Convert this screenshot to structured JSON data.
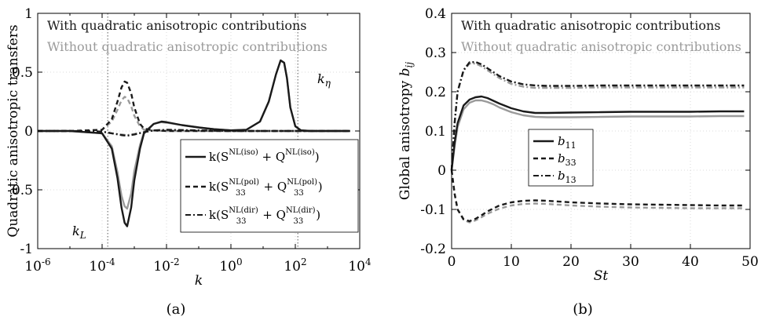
{
  "colors": {
    "black": "#1a1a1a",
    "gray": "#9a9a9a",
    "vline": "#888888",
    "grid": "#cfcfcf"
  },
  "panel_a": {
    "caption": "(a)",
    "header_with": "With quadratic anisotropic contributions",
    "header_without": "Without quadratic anisotropic contributions",
    "ylabel": "Quadratic anisotropic transfers",
    "xlabel": "k",
    "annotations": {
      "kL": "k_L",
      "keta": "k_η"
    },
    "legend": [
      "k(S^NL(iso) + Q^NL(iso))",
      "k(S33^NL(pol) + Q33^NL(pol))",
      "k(S33^NL(dir) + Q33^NL(dir))"
    ],
    "xtick_labels": [
      "10^-6",
      "10^-4",
      "10^-2",
      "10^0",
      "10^2",
      "10^4"
    ],
    "ytick_labels": [
      "1",
      "0.5",
      "0",
      "-0.5",
      "-1"
    ]
  },
  "panel_b": {
    "caption": "(b)",
    "header_with": "With quadratic anisotropic contributions",
    "header_without": "Without quadratic anisotropic contributions",
    "ylabel": "Global anisotropy b_ij",
    "xlabel": "St",
    "legend": [
      "b11",
      "b33",
      "b13"
    ],
    "xtick_labels": [
      "0",
      "10",
      "20",
      "30",
      "40",
      "50"
    ],
    "ytick_labels": [
      "0.4",
      "0.3",
      "0.2",
      "0.1",
      "0",
      "-0.1",
      "-0.2"
    ]
  },
  "chart_data": [
    {
      "type": "line",
      "xscale": "log",
      "xlim": [
        1e-06,
        10000.0
      ],
      "ylim": [
        -1,
        1
      ],
      "xlabel": "k",
      "ylabel": "Quadratic anisotropic transfers",
      "vlines": [
        0.00015,
        120
      ],
      "series": [
        {
          "name": "k(S^NL(iso) + Q^NL(iso))",
          "variant": "with",
          "style": "solid",
          "x": [
            1e-06,
            1e-05,
            0.0001,
            0.0002,
            0.0003,
            0.0004,
            0.0005,
            0.0006,
            0.0008,
            0.001,
            0.0015,
            0.002,
            0.004,
            0.007,
            0.01,
            0.03,
            0.1,
            0.3,
            1,
            3,
            8,
            15,
            25,
            35,
            45,
            55,
            70,
            100,
            150,
            300,
            1000,
            5000
          ],
          "y": [
            0,
            0,
            -0.02,
            -0.15,
            -0.4,
            -0.65,
            -0.78,
            -0.81,
            -0.65,
            -0.42,
            -0.15,
            -0.02,
            0.06,
            0.08,
            0.075,
            0.05,
            0.03,
            0.015,
            0.005,
            0.01,
            0.08,
            0.25,
            0.48,
            0.6,
            0.58,
            0.45,
            0.2,
            0.04,
            0.005,
            0,
            0,
            0
          ]
        },
        {
          "name": "k(S^NL(iso) + Q^NL(iso))",
          "variant": "without",
          "style": "solid",
          "x": [
            1e-06,
            1e-05,
            0.0001,
            0.0002,
            0.0003,
            0.0004,
            0.0005,
            0.0006,
            0.0008,
            0.001,
            0.0015,
            0.002,
            0.004,
            0.007,
            0.01,
            0.03,
            0.1,
            0.3,
            1,
            3,
            8,
            15,
            25,
            35,
            45,
            55,
            70,
            100,
            150,
            300,
            1000,
            5000
          ],
          "y": [
            0,
            0,
            -0.02,
            -0.13,
            -0.35,
            -0.55,
            -0.64,
            -0.66,
            -0.53,
            -0.34,
            -0.12,
            -0.01,
            0.06,
            0.075,
            0.07,
            0.05,
            0.03,
            0.015,
            0.005,
            0.01,
            0.08,
            0.25,
            0.48,
            0.6,
            0.58,
            0.45,
            0.2,
            0.04,
            0.005,
            0,
            0,
            0
          ]
        },
        {
          "name": "k(S33^NL(pol) + Q33^NL(pol))",
          "variant": "with",
          "style": "dashed",
          "x": [
            1e-06,
            1e-05,
            0.0001,
            0.0002,
            0.0003,
            0.0004,
            0.0005,
            0.0006,
            0.0008,
            0.001,
            0.0015,
            0.002,
            0.004,
            0.01,
            0.1,
            1,
            10,
            100,
            1000,
            5000
          ],
          "y": [
            0,
            0,
            0.01,
            0.1,
            0.25,
            0.37,
            0.42,
            0.41,
            0.32,
            0.2,
            0.06,
            0.02,
            0.005,
            0,
            0,
            0,
            0,
            0,
            0,
            0
          ]
        },
        {
          "name": "k(S33^NL(pol) + Q33^NL(pol))",
          "variant": "without",
          "style": "dashed",
          "x": [
            1e-06,
            1e-05,
            0.0001,
            0.0002,
            0.0003,
            0.0004,
            0.0005,
            0.0006,
            0.0008,
            0.001,
            0.0015,
            0.002,
            0.004,
            0.01,
            0.1,
            1,
            10,
            100,
            1000,
            5000
          ],
          "y": [
            0,
            0,
            0.01,
            0.08,
            0.18,
            0.26,
            0.29,
            0.28,
            0.21,
            0.13,
            0.04,
            0.01,
            0.003,
            0,
            0,
            0,
            0,
            0,
            0,
            0
          ]
        },
        {
          "name": "k(S33^NL(dir) + Q33^NL(dir))",
          "variant": "with",
          "style": "dashdot",
          "x": [
            1e-06,
            1e-05,
            0.0001,
            0.0002,
            0.0004,
            0.0006,
            0.001,
            0.002,
            0.004,
            0.01,
            0.03,
            0.1,
            1,
            10,
            100,
            1000,
            5000
          ],
          "y": [
            0,
            0,
            -0.005,
            -0.02,
            -0.035,
            -0.04,
            -0.03,
            -0.01,
            0.005,
            0.01,
            0.008,
            0.005,
            0,
            0,
            0,
            0,
            0
          ]
        },
        {
          "name": "k(S33^NL(dir) + Q33^NL(dir))",
          "variant": "without",
          "style": "dashdot",
          "x": [
            1e-06,
            1e-05,
            0.0001,
            0.0002,
            0.0004,
            0.0006,
            0.001,
            0.002,
            0.004,
            0.01,
            0.03,
            0.1,
            1,
            10,
            100,
            1000,
            5000
          ],
          "y": [
            0,
            0,
            -0.005,
            -0.02,
            -0.03,
            -0.035,
            -0.025,
            -0.01,
            0.004,
            0.008,
            0.006,
            0.004,
            0,
            0,
            0,
            0,
            0
          ]
        }
      ]
    },
    {
      "type": "line",
      "xlim": [
        0,
        50
      ],
      "ylim": [
        -0.2,
        0.4
      ],
      "xlabel": "St",
      "ylabel": "Global anisotropy b_ij",
      "series": [
        {
          "name": "b11",
          "variant": "with",
          "style": "solid",
          "x": [
            0,
            0.5,
            1,
            2,
            3,
            4,
            5,
            6,
            7,
            8,
            10,
            12,
            14,
            16,
            20,
            25,
            30,
            35,
            40,
            45,
            49
          ],
          "y": [
            0,
            0.07,
            0.12,
            0.165,
            0.18,
            0.186,
            0.188,
            0.184,
            0.177,
            0.17,
            0.158,
            0.15,
            0.146,
            0.146,
            0.147,
            0.148,
            0.149,
            0.149,
            0.149,
            0.15,
            0.15
          ]
        },
        {
          "name": "b11",
          "variant": "without",
          "style": "solid",
          "x": [
            0,
            0.5,
            1,
            2,
            3,
            4,
            5,
            6,
            7,
            8,
            10,
            12,
            14,
            16,
            20,
            25,
            30,
            35,
            40,
            45,
            49
          ],
          "y": [
            0,
            0.06,
            0.11,
            0.155,
            0.172,
            0.178,
            0.178,
            0.174,
            0.168,
            0.16,
            0.148,
            0.14,
            0.136,
            0.135,
            0.135,
            0.136,
            0.137,
            0.137,
            0.137,
            0.138,
            0.138
          ]
        },
        {
          "name": "b33",
          "variant": "with",
          "style": "dashed",
          "x": [
            0,
            0.5,
            1,
            2,
            3,
            4,
            5,
            6,
            8,
            10,
            12,
            14,
            16,
            20,
            25,
            30,
            35,
            40,
            45,
            49
          ],
          "y": [
            0,
            -0.06,
            -0.1,
            -0.125,
            -0.13,
            -0.124,
            -0.115,
            -0.105,
            -0.09,
            -0.082,
            -0.078,
            -0.077,
            -0.078,
            -0.082,
            -0.085,
            -0.087,
            -0.088,
            -0.089,
            -0.09,
            -0.09
          ]
        },
        {
          "name": "b33",
          "variant": "without",
          "style": "dashed",
          "x": [
            0,
            0.5,
            1,
            2,
            3,
            4,
            5,
            6,
            8,
            10,
            12,
            14,
            16,
            20,
            25,
            30,
            35,
            40,
            45,
            49
          ],
          "y": [
            0,
            -0.06,
            -0.1,
            -0.127,
            -0.133,
            -0.128,
            -0.12,
            -0.111,
            -0.098,
            -0.09,
            -0.086,
            -0.085,
            -0.086,
            -0.09,
            -0.093,
            -0.095,
            -0.096,
            -0.097,
            -0.097,
            -0.097
          ]
        },
        {
          "name": "b13",
          "variant": "with",
          "style": "dashdot",
          "x": [
            0,
            0.5,
            1,
            2,
            3,
            4,
            5,
            6,
            8,
            10,
            12,
            14,
            16,
            20,
            25,
            30,
            35,
            40,
            45,
            49
          ],
          "y": [
            0,
            0.12,
            0.2,
            0.255,
            0.275,
            0.276,
            0.27,
            0.26,
            0.24,
            0.226,
            0.219,
            0.216,
            0.215,
            0.215,
            0.216,
            0.216,
            0.216,
            0.216,
            0.216,
            0.216
          ]
        },
        {
          "name": "b13",
          "variant": "without",
          "style": "dashdot",
          "x": [
            0,
            0.5,
            1,
            2,
            3,
            4,
            5,
            6,
            8,
            10,
            12,
            14,
            16,
            20,
            25,
            30,
            35,
            40,
            45,
            49
          ],
          "y": [
            0,
            0.12,
            0.2,
            0.254,
            0.272,
            0.272,
            0.265,
            0.255,
            0.235,
            0.22,
            0.213,
            0.21,
            0.21,
            0.21,
            0.211,
            0.211,
            0.211,
            0.211,
            0.211,
            0.211
          ]
        }
      ]
    }
  ]
}
